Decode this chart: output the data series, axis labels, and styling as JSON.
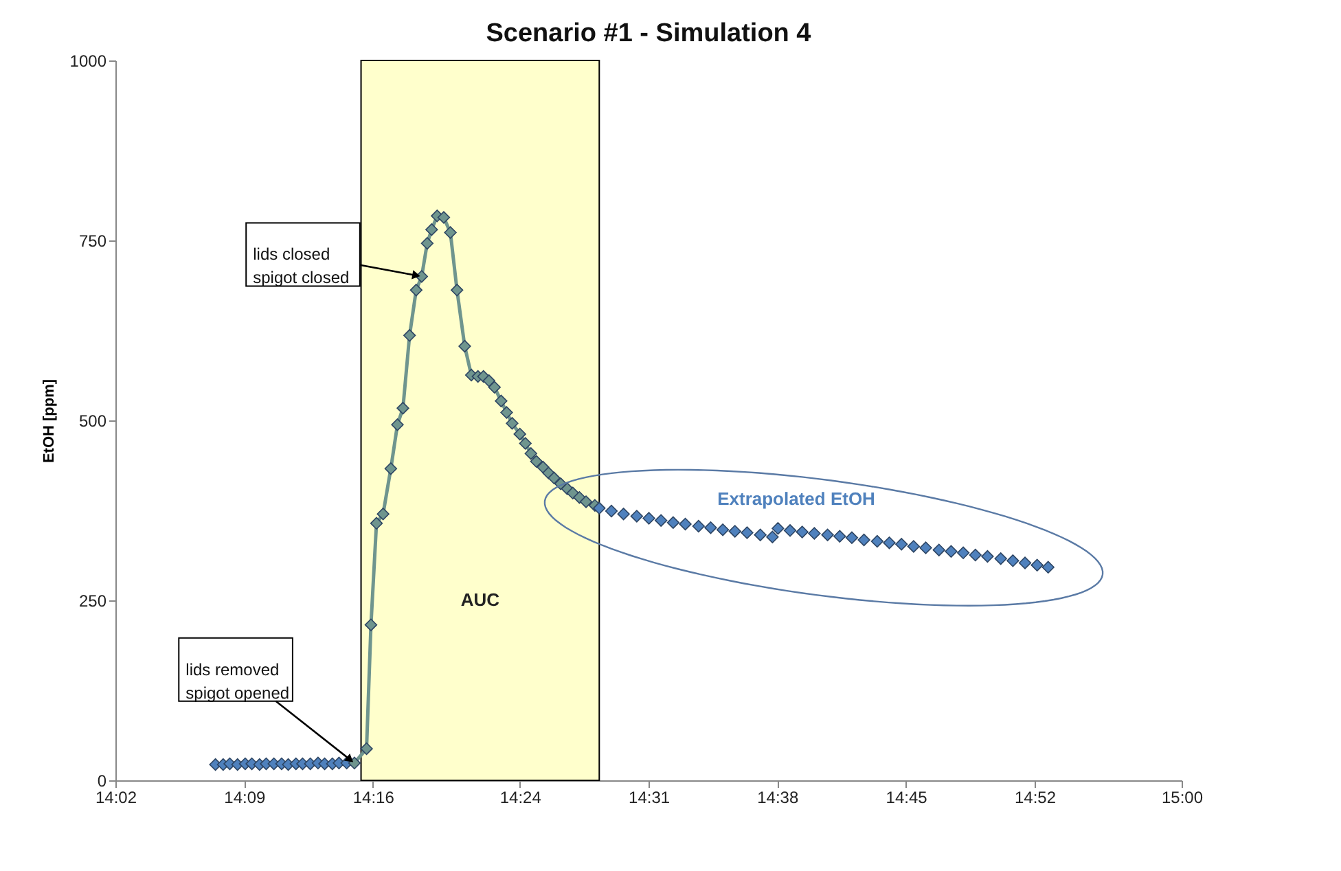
{
  "chart_data": {
    "type": "scatter",
    "title": "Scenario #1 - Simulation 4",
    "ylabel": "EtOH [ppm]",
    "xlim": [
      14.0333,
      15.0
    ],
    "ylim": [
      0,
      1000
    ],
    "xticks": [
      {
        "value": 14.0333,
        "label": "14:02"
      },
      {
        "value": 14.15,
        "label": "14:09"
      },
      {
        "value": 14.2667,
        "label": "14:16"
      },
      {
        "value": 14.4,
        "label": "14:24"
      },
      {
        "value": 14.5167,
        "label": "14:31"
      },
      {
        "value": 14.6333,
        "label": "14:38"
      },
      {
        "value": 14.75,
        "label": "14:45"
      },
      {
        "value": 14.8667,
        "label": "14:52"
      },
      {
        "value": 15.0,
        "label": "15:00"
      }
    ],
    "yticks": [
      0,
      250,
      500,
      750,
      1000
    ],
    "marker": "diamond",
    "line_style": "solid",
    "bands": [
      {
        "axis": "x",
        "from": 14.256,
        "to": 14.472,
        "label": "AUC",
        "color": "#ffffcc"
      }
    ],
    "annotations": [
      {
        "text": "lids removed\nspigot opened",
        "x": 14.25,
        "y": 24
      },
      {
        "text": "lids closed\nspigot closed",
        "x": 14.311,
        "y": 700
      }
    ],
    "series": [
      {
        "color": "#4f81bd",
        "x": [
          14.124,
          14.131,
          14.137,
          14.144,
          14.151,
          14.157,
          14.164,
          14.17,
          14.177,
          14.184,
          14.19,
          14.197,
          14.203,
          14.21,
          14.217,
          14.223,
          14.23,
          14.236,
          14.243
        ],
        "values": [
          22,
          22,
          23,
          22,
          23,
          23,
          22,
          23,
          23,
          23,
          22,
          23,
          23,
          23,
          24,
          23,
          23,
          24,
          24
        ]
      },
      {
        "type": "line",
        "color": "#6f958e",
        "x": [
          14.25,
          14.261,
          14.265,
          14.27,
          14.276,
          14.283,
          14.289,
          14.294,
          14.3,
          14.306,
          14.311,
          14.316,
          14.32,
          14.325,
          14.331,
          14.337,
          14.343,
          14.35,
          14.356,
          14.362,
          14.367,
          14.372,
          14.377,
          14.383,
          14.388,
          14.393,
          14.4,
          14.405,
          14.41,
          14.415,
          14.421,
          14.426,
          14.431,
          14.437,
          14.443,
          14.448,
          14.454,
          14.46,
          14.468
        ],
        "values": [
          24,
          44,
          216,
          357,
          370,
          433,
          494,
          517,
          618,
          681,
          700,
          746,
          765,
          784,
          782,
          761,
          681,
          603,
          563,
          561,
          561,
          555,
          546,
          527,
          511,
          496,
          481,
          468,
          454,
          443,
          435,
          427,
          420,
          412,
          405,
          399,
          393,
          387,
          382
        ]
      },
      {
        "name": "Extrapolated EtOH",
        "color": "#4f81bd",
        "x": [
          14.472,
          14.483,
          14.494,
          14.506,
          14.517,
          14.528,
          14.539,
          14.55,
          14.562,
          14.573,
          14.584,
          14.595,
          14.606,
          14.618,
          14.629,
          14.634,
          14.645,
          14.656,
          14.667,
          14.679,
          14.69,
          14.701,
          14.712,
          14.724,
          14.735,
          14.746,
          14.757,
          14.768,
          14.78,
          14.791,
          14.802,
          14.813,
          14.824,
          14.836,
          14.847,
          14.858,
          14.869,
          14.879
        ],
        "values": [
          378,
          374,
          370,
          367,
          364,
          361,
          358,
          356,
          353,
          351,
          348,
          346,
          344,
          341,
          338,
          350,
          347,
          345,
          343,
          341,
          339,
          337,
          334,
          332,
          330,
          328,
          325,
          323,
          320,
          318,
          316,
          313,
          311,
          308,
          305,
          302,
          299,
          296
        ]
      }
    ]
  }
}
